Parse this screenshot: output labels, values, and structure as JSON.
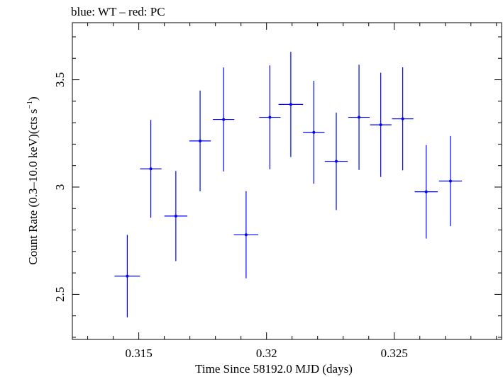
{
  "chart_data": {
    "type": "scatter",
    "title": "blue: WT – red: PC",
    "xlabel": "Time Since 58192.0 MJD (days)",
    "ylabel_main": "Count Rate (0.3–10.0 keV)(cts s",
    "ylabel_sup": "−1",
    "ylabel_close": ")",
    "xlim": [
      0.3124,
      0.3292
    ],
    "ylim": [
      2.29,
      3.766
    ],
    "x_ticks": [
      0.315,
      0.32,
      0.325
    ],
    "x_tick_labels": [
      "0.315",
      "0.32",
      "0.325"
    ],
    "y_ticks": [
      2.5,
      3,
      3.5
    ],
    "y_tick_labels": [
      "2.5",
      "3",
      "3.5"
    ],
    "grid": false,
    "series": [
      {
        "color": "#0000ff",
        "x": [
          0.31455,
          0.31547,
          0.31645,
          0.3174,
          0.31832,
          0.3192,
          0.32013,
          0.32095,
          0.32185,
          0.32273,
          0.32362,
          0.32447,
          0.32533,
          0.32625,
          0.3272
        ],
        "xerr": [
          0.0005,
          0.00042,
          0.00045,
          0.00042,
          0.00042,
          0.00048,
          0.00042,
          0.00048,
          0.00042,
          0.00045,
          0.00042,
          0.00042,
          0.00042,
          0.00045,
          0.00045
        ],
        "y": [
          2.585,
          3.085,
          2.865,
          3.215,
          3.315,
          2.778,
          3.325,
          3.385,
          3.255,
          3.12,
          3.325,
          3.29,
          3.318,
          2.978,
          3.028
        ],
        "yerr": [
          0.192,
          0.228,
          0.21,
          0.235,
          0.242,
          0.203,
          0.242,
          0.245,
          0.24,
          0.227,
          0.245,
          0.243,
          0.24,
          0.218,
          0.21
        ]
      }
    ]
  }
}
